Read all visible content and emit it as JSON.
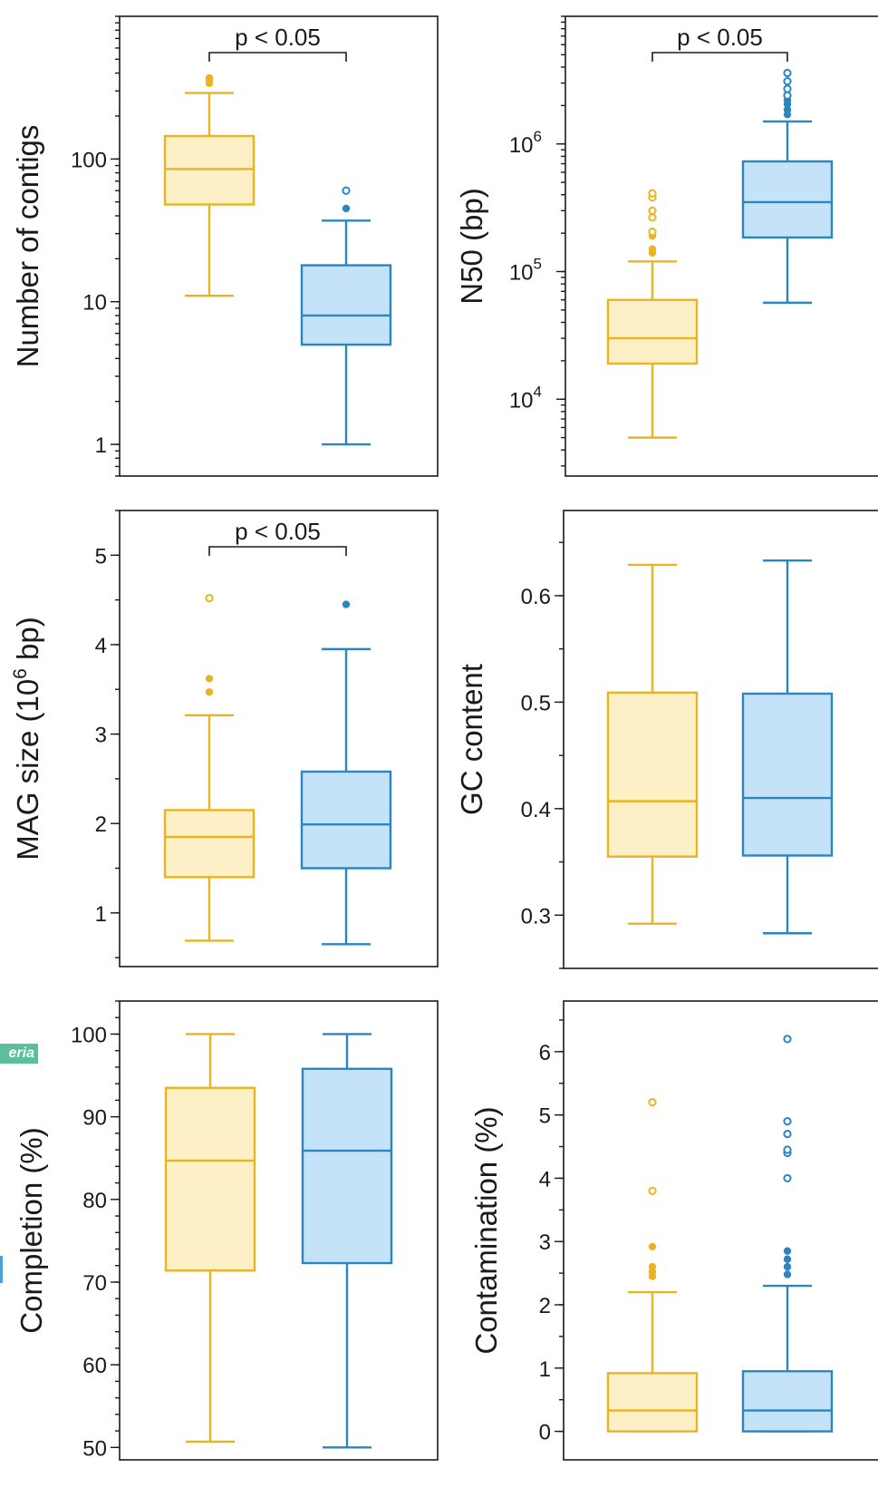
{
  "figure": {
    "side_label": "eria",
    "colors": {
      "group1_stroke": "#e8b422",
      "group1_fill": "#fdefc6",
      "group2_stroke": "#2b86c0",
      "group2_fill": "#c5e3f8",
      "axis": "#1a1a1a"
    }
  },
  "chart_data": [
    {
      "id": "contigs",
      "type": "box",
      "scale": "log",
      "ylabel": "Number of contigs",
      "ylim": [
        0.6,
        1000
      ],
      "ticks": [
        {
          "value": 1,
          "label": "1"
        },
        {
          "value": 10,
          "label": "10"
        },
        {
          "value": 100,
          "label": "100"
        }
      ],
      "significance": "p < 0.05",
      "groups": [
        {
          "whisker_low": 11,
          "q1": 48,
          "median": 85,
          "q3": 145,
          "whisker_high": 290,
          "outliers": [
            {
              "value": 340,
              "open": false
            },
            {
              "value": 360,
              "open": false
            },
            {
              "value": 370,
              "open": false
            }
          ]
        },
        {
          "whisker_low": 1,
          "q1": 5,
          "median": 8,
          "q3": 18,
          "whisker_high": 37,
          "outliers": [
            {
              "value": 45,
              "open": false
            },
            {
              "value": 60,
              "open": true
            }
          ]
        }
      ]
    },
    {
      "id": "n50",
      "type": "box",
      "scale": "log",
      "ylabel": "N50 (bp)",
      "ylim": [
        2500,
        10000000
      ],
      "ticks": [
        {
          "value": 10000,
          "base": "10",
          "exp": "4"
        },
        {
          "value": 100000,
          "base": "10",
          "exp": "5"
        },
        {
          "value": 1000000,
          "base": "10",
          "exp": "6"
        }
      ],
      "significance": "p < 0.05",
      "groups": [
        {
          "whisker_low": 5000,
          "q1": 19000,
          "median": 30000,
          "q3": 60000,
          "whisker_high": 120000,
          "outliers": [
            {
              "value": 140000,
              "open": false
            },
            {
              "value": 150000,
              "open": false
            },
            {
              "value": 190000,
              "open": false
            },
            {
              "value": 205000,
              "open": true
            },
            {
              "value": 265000,
              "open": true
            },
            {
              "value": 300000,
              "open": true
            },
            {
              "value": 380000,
              "open": true
            },
            {
              "value": 410000,
              "open": true
            }
          ]
        },
        {
          "whisker_low": 57000,
          "q1": 185000,
          "median": 350000,
          "q3": 730000,
          "whisker_high": 1500000,
          "outliers": [
            {
              "value": 1700000,
              "open": false
            },
            {
              "value": 1850000,
              "open": false
            },
            {
              "value": 2050000,
              "open": false
            },
            {
              "value": 2200000,
              "open": false
            },
            {
              "value": 2400000,
              "open": true
            },
            {
              "value": 2700000,
              "open": true
            },
            {
              "value": 3100000,
              "open": true
            },
            {
              "value": 3600000,
              "open": true
            }
          ]
        }
      ]
    },
    {
      "id": "mag-size",
      "type": "box",
      "scale": "linear",
      "ylabel_parts": [
        "MAG size (10",
        "6",
        " bp)"
      ],
      "ylim": [
        0.4,
        5.5
      ],
      "minor_step": 0.5,
      "ticks": [
        {
          "value": 1,
          "label": "1"
        },
        {
          "value": 2,
          "label": "2"
        },
        {
          "value": 3,
          "label": "3"
        },
        {
          "value": 4,
          "label": "4"
        },
        {
          "value": 5,
          "label": "5"
        }
      ],
      "significance": "p < 0.05",
      "groups": [
        {
          "whisker_low": 0.69,
          "q1": 1.4,
          "median": 1.85,
          "q3": 2.15,
          "whisker_high": 3.21,
          "outliers": [
            {
              "value": 3.47,
              "open": false
            },
            {
              "value": 3.62,
              "open": false
            },
            {
              "value": 4.52,
              "open": true
            }
          ]
        },
        {
          "whisker_low": 0.65,
          "q1": 1.5,
          "median": 1.99,
          "q3": 2.58,
          "whisker_high": 3.95,
          "outliers": [
            {
              "value": 4.45,
              "open": false
            }
          ]
        }
      ]
    },
    {
      "id": "gc",
      "type": "box",
      "scale": "linear",
      "ylabel": "GC content",
      "ylim": [
        0.25,
        0.68
      ],
      "minor_step": 0.05,
      "ticks": [
        {
          "value": 0.3,
          "label": "0.3"
        },
        {
          "value": 0.4,
          "label": "0.4"
        },
        {
          "value": 0.5,
          "label": "0.5"
        },
        {
          "value": 0.6,
          "label": "0.6"
        }
      ],
      "groups": [
        {
          "whisker_low": 0.292,
          "q1": 0.355,
          "median": 0.407,
          "q3": 0.509,
          "whisker_high": 0.629,
          "outliers": []
        },
        {
          "whisker_low": 0.283,
          "q1": 0.356,
          "median": 0.41,
          "q3": 0.508,
          "whisker_high": 0.633,
          "outliers": []
        }
      ]
    },
    {
      "id": "completion",
      "type": "box",
      "scale": "linear",
      "ylabel": "Completion (%)",
      "ylim": [
        48.5,
        104
      ],
      "minor_step": 2,
      "ticks": [
        {
          "value": 50,
          "label": "50"
        },
        {
          "value": 60,
          "label": "60"
        },
        {
          "value": 70,
          "label": "70"
        },
        {
          "value": 80,
          "label": "80"
        },
        {
          "value": 90,
          "label": "90"
        },
        {
          "value": 100,
          "label": "100"
        }
      ],
      "groups": [
        {
          "whisker_low": 50.7,
          "q1": 71.4,
          "median": 84.7,
          "q3": 93.5,
          "whisker_high": 100,
          "outliers": []
        },
        {
          "whisker_low": 50,
          "q1": 72.3,
          "median": 85.9,
          "q3": 95.8,
          "whisker_high": 100,
          "outliers": []
        }
      ]
    },
    {
      "id": "contamination",
      "type": "box",
      "scale": "linear",
      "ylabel": "Contamination (%)",
      "ylim": [
        -0.45,
        6.8
      ],
      "minor_step": 0.5,
      "ticks": [
        {
          "value": 0,
          "label": "0"
        },
        {
          "value": 1,
          "label": "1"
        },
        {
          "value": 2,
          "label": "2"
        },
        {
          "value": 3,
          "label": "3"
        },
        {
          "value": 4,
          "label": "4"
        },
        {
          "value": 5,
          "label": "5"
        },
        {
          "value": 6,
          "label": "6"
        }
      ],
      "groups": [
        {
          "whisker_low": 0,
          "q1": 0,
          "median": 0.33,
          "q3": 0.92,
          "whisker_high": 2.2,
          "outliers": [
            {
              "value": 2.45,
              "open": false
            },
            {
              "value": 2.52,
              "open": false
            },
            {
              "value": 2.6,
              "open": false
            },
            {
              "value": 2.92,
              "open": false
            },
            {
              "value": 3.8,
              "open": true
            },
            {
              "value": 5.2,
              "open": true
            }
          ]
        },
        {
          "whisker_low": 0,
          "q1": 0,
          "median": 0.33,
          "q3": 0.95,
          "whisker_high": 2.3,
          "outliers": [
            {
              "value": 2.48,
              "open": false
            },
            {
              "value": 2.6,
              "open": false
            },
            {
              "value": 2.72,
              "open": false
            },
            {
              "value": 2.85,
              "open": false
            },
            {
              "value": 4.0,
              "open": true
            },
            {
              "value": 4.4,
              "open": true
            },
            {
              "value": 4.45,
              "open": true
            },
            {
              "value": 4.7,
              "open": true
            },
            {
              "value": 4.9,
              "open": true
            },
            {
              "value": 6.2,
              "open": true
            }
          ]
        }
      ]
    }
  ]
}
